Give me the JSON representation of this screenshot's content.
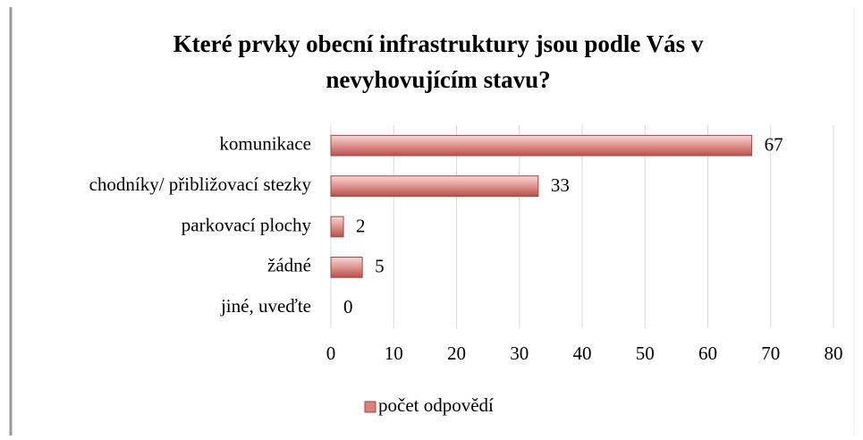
{
  "chart_data": {
    "type": "bar",
    "orientation": "horizontal",
    "title": [
      "Které prvky obecní infrastruktury jsou podle Vás v",
      "nevyhovujícím stavu?"
    ],
    "categories": [
      "komunikace",
      "chodníky/ přibližovací stezky",
      "parkovací plochy",
      "žádné",
      "jiné, uveďte"
    ],
    "series": [
      {
        "name": "počet odpovědí",
        "color": "#d9817c",
        "values": [
          67,
          33,
          2,
          5,
          0
        ]
      }
    ],
    "xlim": [
      0,
      80
    ],
    "xticks": [
      0,
      10,
      20,
      30,
      40,
      50,
      60,
      70,
      80
    ],
    "grid": true,
    "legend": "bottom"
  }
}
